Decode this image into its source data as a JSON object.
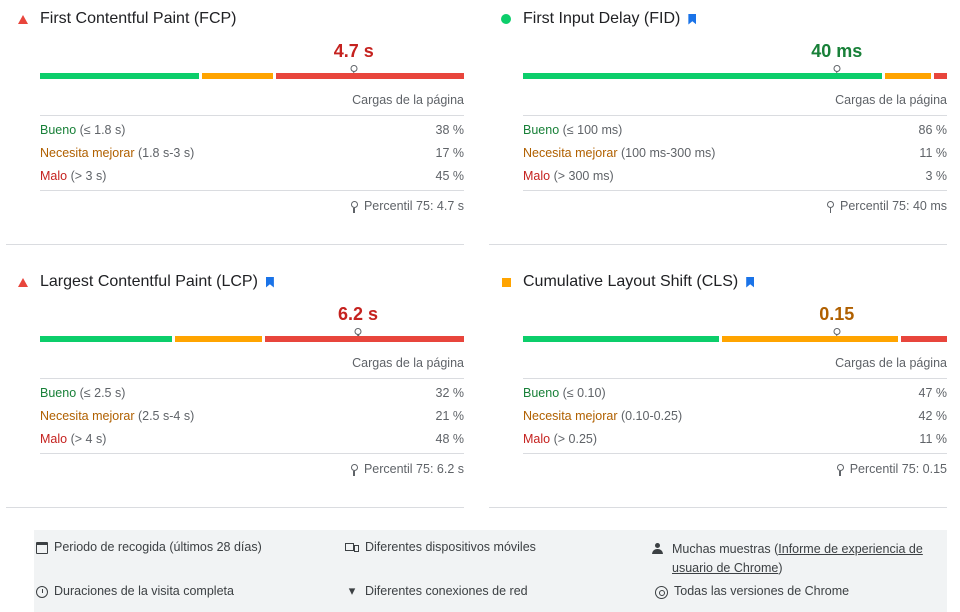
{
  "cargas_label": "Cargas de la página",
  "metrics": [
    {
      "title": "First Contentful Paint (FCP)",
      "status": "poor",
      "bookmark": false,
      "value": "4.7 s",
      "value_color": "#c5221f",
      "distribution": {
        "good": 38,
        "ni": 17,
        "poor": 45
      },
      "p75_position": 0.74,
      "rows": [
        {
          "label": "Bueno",
          "range": "(≤ 1.8 s)",
          "pct": "38 %"
        },
        {
          "label": "Necesita mejorar",
          "range": "(1.8 s-3 s)",
          "pct": "17 %"
        },
        {
          "label": "Malo",
          "range": "(> 3 s)",
          "pct": "45 %"
        }
      ],
      "percentile": "Percentil 75: 4.7 s"
    },
    {
      "title": "First Input Delay (FID)",
      "status": "good",
      "bookmark": true,
      "value": "40 ms",
      "value_color": "#188038",
      "distribution": {
        "good": 86,
        "ni": 11,
        "poor": 3
      },
      "p75_position": 0.74,
      "rows": [
        {
          "label": "Bueno",
          "range": "(≤ 100 ms)",
          "pct": "86 %"
        },
        {
          "label": "Necesita mejorar",
          "range": "(100 ms-300 ms)",
          "pct": "11 %"
        },
        {
          "label": "Malo",
          "range": "(> 300 ms)",
          "pct": "3 %"
        }
      ],
      "percentile": "Percentil 75: 40 ms"
    },
    {
      "title": "Largest Contentful Paint (LCP)",
      "status": "poor",
      "bookmark": true,
      "value": "6.2 s",
      "value_color": "#c5221f",
      "distribution": {
        "good": 32,
        "ni": 21,
        "poor": 48
      },
      "p75_position": 0.75,
      "rows": [
        {
          "label": "Bueno",
          "range": "(≤ 2.5 s)",
          "pct": "32 %"
        },
        {
          "label": "Necesita mejorar",
          "range": "(2.5 s-4 s)",
          "pct": "21 %"
        },
        {
          "label": "Malo",
          "range": "(> 4 s)",
          "pct": "48 %"
        }
      ],
      "percentile": "Percentil 75: 6.2 s"
    },
    {
      "title": "Cumulative Layout Shift (CLS)",
      "status": "ni",
      "bookmark": true,
      "value": "0.15",
      "value_color": "#b06000",
      "distribution": {
        "good": 47,
        "ni": 42,
        "poor": 11
      },
      "p75_position": 0.74,
      "rows": [
        {
          "label": "Bueno",
          "range": "(≤ 0.10)",
          "pct": "47 %"
        },
        {
          "label": "Necesita mejorar",
          "range": "(0.10-0.25)",
          "pct": "42 %"
        },
        {
          "label": "Malo",
          "range": "(> 0.25)",
          "pct": "11 %"
        }
      ],
      "percentile": "Percentil 75: 0.15"
    }
  ],
  "footer": {
    "period": "Periodo de recogida (últimos 28 días)",
    "devices": "Diferentes dispositivos móviles",
    "samples_prefix": "Muchas muestras (",
    "samples_link": "Informe de experiencia de usuario de Chrome",
    "samples_suffix": ")",
    "durations": "Duraciones de la visita completa",
    "connections": "Diferentes conexiones de red",
    "versions": "Todas las versiones de Chrome"
  },
  "icons": {
    "period": "calendar-icon",
    "devices": "devices-icon",
    "samples": "samples-icon",
    "durations": "timer-icon",
    "connections": "wifi-icon",
    "versions": "chrome-icon"
  }
}
